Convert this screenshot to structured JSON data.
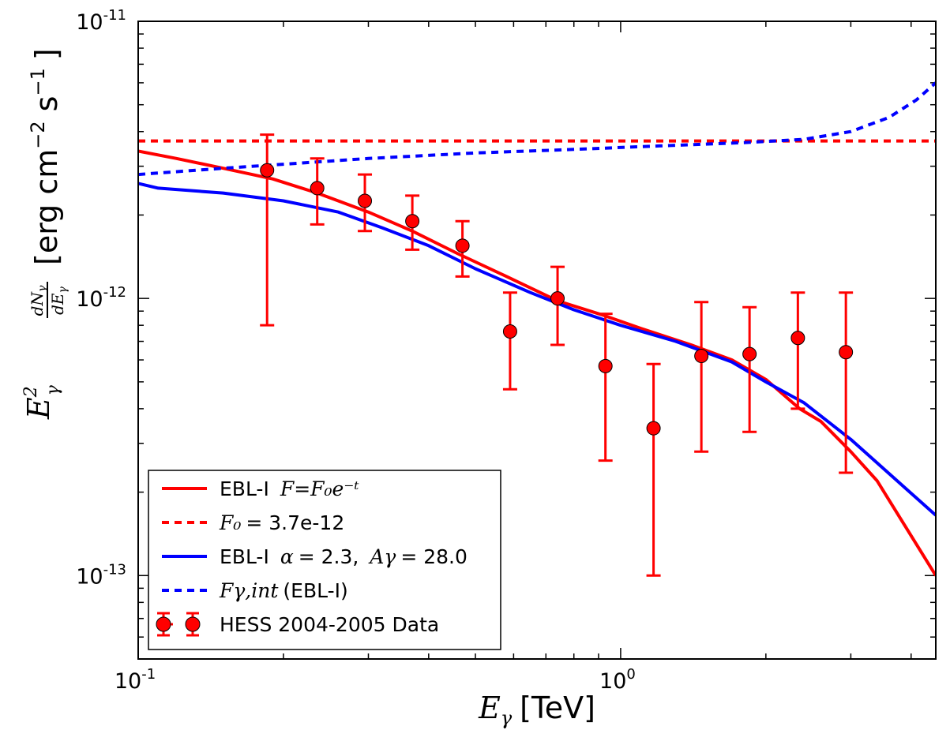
{
  "chart_data": {
    "type": "line",
    "xscale": "log",
    "yscale": "log",
    "xlim": [
      0.1,
      4.5
    ],
    "ylim": [
      5e-14,
      1e-11
    ],
    "xlabel": "E_γ [TeV]",
    "ylabel": "E_γ² dN_γ/dE_γ [erg cm⁻² s⁻¹]",
    "x_ticks": [
      {
        "value": 0.1,
        "base": "10",
        "exp": "-1"
      },
      {
        "value": 1.0,
        "base": "10",
        "exp": "0"
      }
    ],
    "y_ticks": [
      {
        "value": 1e-13,
        "base": "10",
        "exp": "-13"
      },
      {
        "value": 1e-12,
        "base": "10",
        "exp": "-12"
      },
      {
        "value": 1e-11,
        "base": "10",
        "exp": "-11"
      }
    ],
    "series": [
      {
        "name": "EBL-I F=F0 e^-τ",
        "style": "solid",
        "color": "#ff0000",
        "x": [
          0.1,
          0.12,
          0.15,
          0.19,
          0.235,
          0.3,
          0.37,
          0.46,
          0.58,
          0.74,
          0.92,
          1.1,
          1.4,
          1.7,
          2.0,
          2.35,
          2.6,
          3.0,
          3.4,
          4.5
        ],
        "y": [
          3.4e-12,
          3.2e-12,
          2.95e-12,
          2.7e-12,
          2.4e-12,
          2.05e-12,
          1.75e-12,
          1.45e-12,
          1.2e-12,
          9.8e-13,
          8.7e-13,
          7.8e-13,
          6.8e-13,
          6e-13,
          5.1e-13,
          4e-13,
          3.6e-13,
          2.8e-13,
          2.2e-13,
          1e-13
        ]
      },
      {
        "name": "F0 = 3.7e-12",
        "style": "dashed",
        "color": "#ff0000",
        "x": [
          0.1,
          4.5
        ],
        "y": [
          3.7e-12,
          3.7e-12
        ]
      },
      {
        "name": "EBL-I α = 2.3, Aγ = 28.0",
        "style": "solid",
        "color": "#0000ff",
        "x": [
          0.1,
          0.11,
          0.15,
          0.2,
          0.26,
          0.32,
          0.4,
          0.5,
          0.65,
          0.8,
          1.0,
          1.3,
          1.7,
          2.0,
          2.4,
          3.0,
          4.5
        ],
        "y": [
          2.6e-12,
          2.5e-12,
          2.4e-12,
          2.25e-12,
          2.05e-12,
          1.8e-12,
          1.55e-12,
          1.28e-12,
          1.05e-12,
          9.1e-13,
          8e-13,
          7e-13,
          5.9e-13,
          5e-13,
          4.2e-13,
          3.1e-13,
          1.65e-13
        ]
      },
      {
        "name": "Fγ,int (EBL-I)",
        "style": "dashed",
        "color": "#0000ff",
        "x": [
          0.1,
          0.15,
          0.2,
          0.3,
          0.5,
          0.8,
          1.2,
          1.8,
          2.4,
          3.0,
          3.6,
          4.1,
          4.5
        ],
        "y": [
          2.8e-12,
          2.95e-12,
          3.05e-12,
          3.2e-12,
          3.35e-12,
          3.45e-12,
          3.55e-12,
          3.65e-12,
          3.75e-12,
          4e-12,
          4.5e-12,
          5.2e-12,
          6e-12
        ]
      }
    ],
    "data_points": {
      "name": "HESS 2004-2005 Data",
      "color": "#ff0000",
      "points": [
        {
          "x": 0.185,
          "y": 2.9e-12,
          "ylo": 8e-13,
          "yhi": 3.9e-12
        },
        {
          "x": 0.235,
          "y": 2.5e-12,
          "ylo": 1.85e-12,
          "yhi": 3.2e-12
        },
        {
          "x": 0.295,
          "y": 2.25e-12,
          "ylo": 1.75e-12,
          "yhi": 2.8e-12
        },
        {
          "x": 0.37,
          "y": 1.9e-12,
          "ylo": 1.5e-12,
          "yhi": 2.35e-12
        },
        {
          "x": 0.47,
          "y": 1.55e-12,
          "ylo": 1.2e-12,
          "yhi": 1.9e-12
        },
        {
          "x": 0.59,
          "y": 7.6e-13,
          "ylo": 4.7e-13,
          "yhi": 1.05e-12
        },
        {
          "x": 0.74,
          "y": 1e-12,
          "ylo": 6.8e-13,
          "yhi": 1.3e-12
        },
        {
          "x": 0.93,
          "y": 5.7e-13,
          "ylo": 2.6e-13,
          "yhi": 8.8e-13
        },
        {
          "x": 1.17,
          "y": 3.4e-13,
          "ylo": 1e-13,
          "yhi": 5.8e-13
        },
        {
          "x": 1.47,
          "y": 6.2e-13,
          "ylo": 2.8e-13,
          "yhi": 9.7e-13
        },
        {
          "x": 1.85,
          "y": 6.3e-13,
          "ylo": 3.3e-13,
          "yhi": 9.3e-13
        },
        {
          "x": 2.33,
          "y": 7.2e-13,
          "ylo": 4e-13,
          "yhi": 1.05e-12
        },
        {
          "x": 2.93,
          "y": 6.4e-13,
          "ylo": 2.35e-13,
          "yhi": 1.05e-12
        }
      ]
    },
    "legend": {
      "position": "lower-left",
      "entries": [
        {
          "text": "EBL-I",
          "math": "F=F₀e⁻ᵗ",
          "style": "solid",
          "color": "#ff0000"
        },
        {
          "text": "= 3.7e-12",
          "math": "F₀",
          "style": "dashed",
          "color": "#ff0000"
        },
        {
          "text": "EBL-I",
          "math1": "α",
          "value1": "= 2.3,",
          "math2": "Aγ",
          "value2": "= 28.0",
          "style": "solid",
          "color": "#0000ff"
        },
        {
          "text": "(EBL-I)",
          "math": "Fγ,int",
          "style": "dashed",
          "color": "#0000ff"
        },
        {
          "text": "HESS 2004-2005 Data",
          "style": "errorbar",
          "color": "#ff0000"
        }
      ]
    }
  },
  "labels": {
    "x_axis_math": "E",
    "x_axis_sub": "γ",
    "x_axis_unit": "[TeV]",
    "y_axis_math": "E",
    "y_axis_sup": "2",
    "y_axis_sub": "γ",
    "y_axis_frac_num": "dN",
    "y_axis_frac_den": "dE",
    "y_axis_frac_sub": "γ",
    "y_axis_unit_a": "[erg cm",
    "y_axis_unit_exp1": "−2",
    "y_axis_unit_b": "s",
    "y_axis_unit_exp2": "−1",
    "y_axis_unit_c": "]"
  }
}
